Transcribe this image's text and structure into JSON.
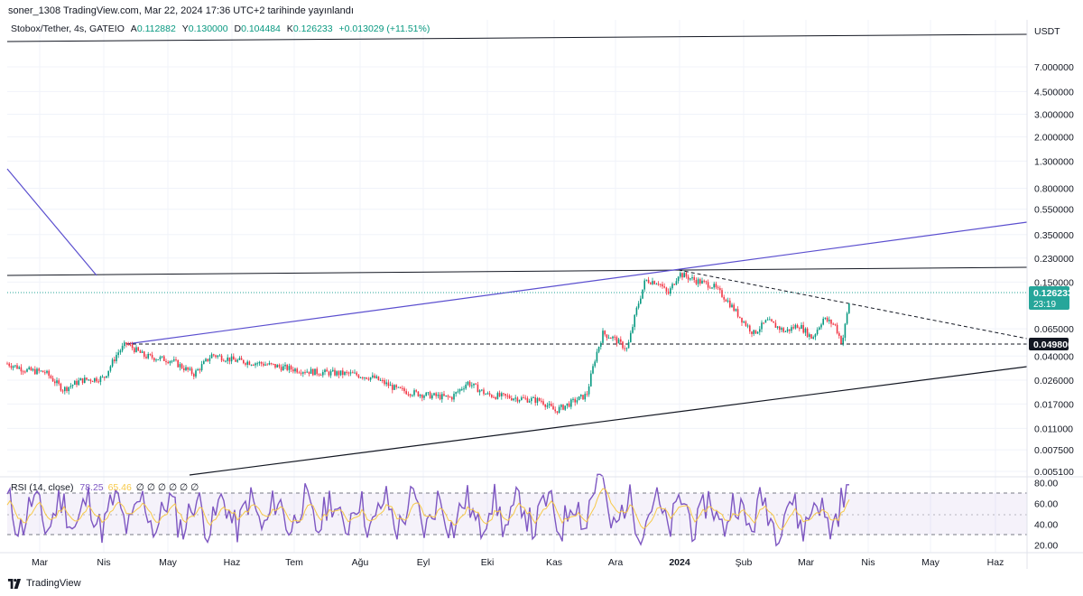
{
  "publish_line": "soner_1308 TradingView.com, Mar 22, 2024 17:36 UTC+2 tarihinde yayınlandı",
  "legend": {
    "symbol": "Stobox/Tether, 4s, GATEIO",
    "open_label": "A",
    "open": "0.112882",
    "high_label": "Y",
    "high": "0.130000",
    "low_label": "D",
    "low": "0.104484",
    "close_label": "K",
    "close": "0.126233",
    "change": "+0.013029 (+11.51%)"
  },
  "currency": "USDT",
  "price_axis": {
    "scale": "log",
    "ticks": [
      "7.000000",
      "4.500000",
      "3.000000",
      "2.000000",
      "1.300000",
      "0.800000",
      "0.550000",
      "0.350000",
      "0.230000",
      "0.150000",
      "0.065000",
      "0.040000",
      "0.026000",
      "0.017000",
      "0.011000",
      "0.007500",
      "0.005100"
    ],
    "current_price": "0.126233",
    "countdown": "23:19",
    "marked_level": "0.049800"
  },
  "rsi": {
    "label": "RSI (14, close)",
    "value": "78.25",
    "ma_value": "65.46",
    "extra": "∅ ∅ ∅ ∅ ∅ ∅",
    "ticks": [
      "80.00",
      "60.00",
      "40.00",
      "20.00"
    ],
    "upper_band": 70,
    "lower_band": 30
  },
  "time_axis": [
    "Mar",
    "Nis",
    "May",
    "Haz",
    "Tem",
    "Ağu",
    "Eyl",
    "Eki",
    "Kas",
    "Ara",
    "2024",
    "Şub",
    "Mar",
    "Nis",
    "May",
    "Haz"
  ],
  "footer": {
    "brand": "TradingView"
  },
  "colors": {
    "up": "#089981",
    "down": "#f23645",
    "rsi_line": "#7e57c2",
    "rsi_ma": "#f7c948",
    "trendline_blue": "#5b4fcf",
    "price_tag": "#26a69a"
  },
  "chart_data": {
    "type": "candlestick",
    "symbol": "Stobox/Tether",
    "timeframe": "4s",
    "y_scale": "log",
    "approx_closes": [
      {
        "x": "Mar 2023",
        "y": 0.032
      },
      {
        "x": "Nis",
        "y": 0.029
      },
      {
        "x": "Nis (mid)",
        "y": 0.053
      },
      {
        "x": "May",
        "y": 0.038
      },
      {
        "x": "Haz",
        "y": 0.039
      },
      {
        "x": "Tem",
        "y": 0.031
      },
      {
        "x": "Ağu",
        "y": 0.028
      },
      {
        "x": "Eyl",
        "y": 0.019
      },
      {
        "x": "Eki",
        "y": 0.019
      },
      {
        "x": "Kas",
        "y": 0.015
      },
      {
        "x": "Kas (late)",
        "y": 0.06
      },
      {
        "x": "Ara",
        "y": 0.15
      },
      {
        "x": "2024",
        "y": 0.18
      },
      {
        "x": "Şub",
        "y": 0.07
      },
      {
        "x": "Mar",
        "y": 0.06
      },
      {
        "x": "Mar (22)",
        "y": 0.126
      }
    ]
  }
}
